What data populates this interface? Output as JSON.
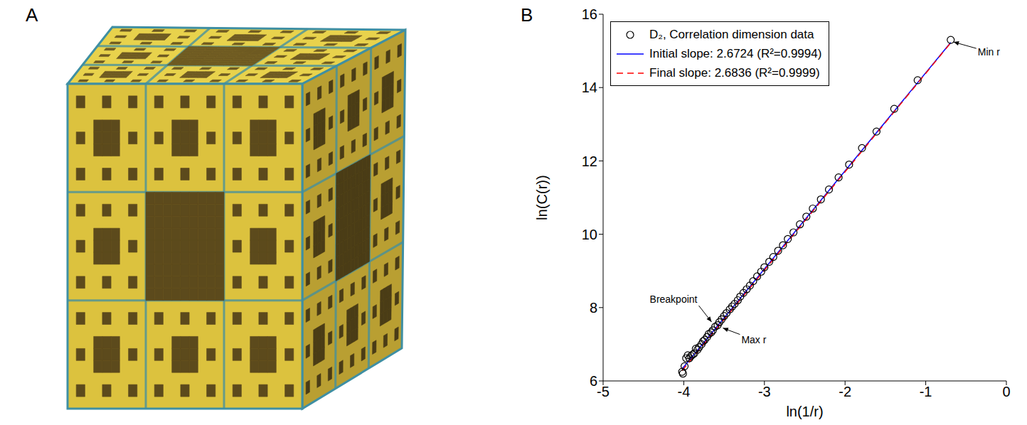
{
  "panel_labels": [
    "A",
    "B"
  ],
  "chart_data": {
    "type": "scatter",
    "x_label": "ln(1/r)",
    "y_label": "ln(C(r))",
    "xlim": [
      -5,
      0
    ],
    "xticks": [
      -5,
      -4,
      -3,
      -2,
      -1,
      0
    ],
    "ylim": [
      6,
      16
    ],
    "yticks": [
      6,
      8,
      10,
      12,
      14,
      16
    ],
    "grid": false,
    "legend": "upper left",
    "series": [
      {
        "name": "D₂, Correlation dimension data",
        "type": "scatter",
        "marker": "circle",
        "color": "#000000",
        "x": [
          -0.69,
          -1.1,
          -1.39,
          -1.61,
          -1.79,
          -1.95,
          -2.08,
          -2.2,
          -2.3,
          -2.4,
          -2.48,
          -2.56,
          -2.64,
          -2.71,
          -2.77,
          -2.83,
          -2.89,
          -2.94,
          -3.0,
          -3.04,
          -3.09,
          -3.14,
          -3.18,
          -3.22,
          -3.26,
          -3.3,
          -3.33,
          -3.37,
          -3.4,
          -3.43,
          -3.47,
          -3.5,
          -3.53,
          -3.56,
          -3.58,
          -3.61,
          -3.64,
          -3.66,
          -3.69,
          -3.71,
          -3.74,
          -3.76,
          -3.78,
          -3.81,
          -3.83,
          -3.85,
          -3.87,
          -3.89,
          -3.91,
          -3.93,
          -3.95,
          -3.97,
          -3.99,
          -4.01,
          -4.02
        ],
        "values": [
          15.3,
          14.2,
          13.42,
          12.8,
          12.35,
          11.9,
          11.55,
          11.22,
          10.95,
          10.7,
          10.48,
          10.27,
          10.05,
          9.87,
          9.7,
          9.55,
          9.38,
          9.25,
          9.1,
          8.98,
          8.85,
          8.72,
          8.6,
          8.5,
          8.4,
          8.3,
          8.2,
          8.1,
          8.03,
          7.95,
          7.85,
          7.77,
          7.68,
          7.6,
          7.52,
          7.48,
          7.38,
          7.32,
          7.28,
          7.2,
          7.12,
          7.08,
          7.0,
          6.92,
          6.85,
          6.88,
          6.75,
          6.72,
          6.68,
          6.62,
          6.7,
          6.62,
          6.4,
          6.2,
          6.25
        ]
      },
      {
        "name": "Initial slope: 2.6724 (R²=0.9994)",
        "type": "line",
        "line_style": "solid",
        "color": "#0000ff",
        "x": [
          -4.02,
          -0.69
        ],
        "values": [
          6.33,
          15.23
        ]
      },
      {
        "name": "Final slope: 2.6836 (R²=0.9999)",
        "type": "line",
        "line_style": "dashed",
        "color": "#ff0000",
        "x": [
          -4.02,
          -0.69
        ],
        "values": [
          6.28,
          15.22
        ]
      }
    ],
    "annotations": [
      {
        "text": "Min r",
        "x": -0.69,
        "y": 15.3
      },
      {
        "text": "Breakpoint",
        "x": -3.62,
        "y": 7.55
      },
      {
        "text": "Max r",
        "x": -3.55,
        "y": 7.5
      }
    ]
  }
}
